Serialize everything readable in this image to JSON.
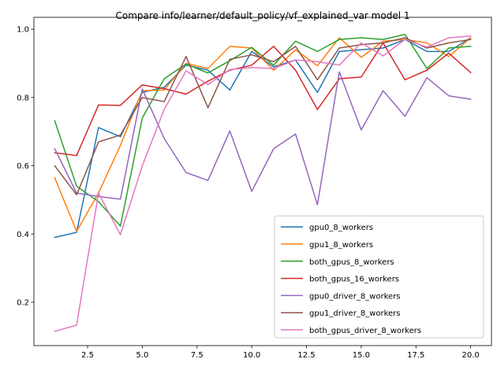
{
  "chart_data": {
    "type": "line",
    "title": "Compare info/learner/default_policy/vf_explained_var model 1",
    "xlabel": "",
    "ylabel": "",
    "xlim": [
      0.05,
      20.95
    ],
    "ylim": [
      0.073,
      1.035
    ],
    "xticks": [
      2.5,
      5.0,
      7.5,
      10.0,
      12.5,
      15.0,
      17.5,
      20.0
    ],
    "xtick_labels": [
      "2.5",
      "5.0",
      "7.5",
      "10.0",
      "12.5",
      "15.0",
      "17.5",
      "20.0"
    ],
    "yticks": [
      0.2,
      0.4,
      0.6,
      0.8,
      1.0
    ],
    "ytick_labels": [
      "0.2",
      "0.4",
      "0.6",
      "0.8",
      "1.0"
    ],
    "grid": false,
    "legend_position": "lower-right",
    "x": [
      1,
      2,
      3,
      4,
      5,
      6,
      7,
      8,
      9,
      10,
      11,
      12,
      13,
      14,
      15,
      16,
      17,
      18,
      19,
      20
    ],
    "series": [
      {
        "name": "gpu0_8_workers",
        "color": "#1f77b4",
        "values": [
          0.39,
          0.405,
          0.712,
          0.685,
          0.815,
          0.83,
          0.895,
          0.88,
          0.822,
          0.935,
          0.89,
          0.91,
          0.815,
          0.935,
          0.94,
          0.945,
          0.97,
          0.935,
          0.935,
          0.975
        ]
      },
      {
        "name": "gpu1_8_workers",
        "color": "#ff7f0e",
        "values": [
          0.565,
          0.408,
          0.52,
          0.66,
          0.82,
          0.822,
          0.9,
          0.885,
          0.95,
          0.945,
          0.88,
          0.94,
          0.893,
          0.975,
          0.918,
          0.965,
          0.97,
          0.96,
          0.92,
          0.975
        ]
      },
      {
        "name": "both_gpus_8_workers",
        "color": "#2ca02c",
        "values": [
          0.732,
          0.54,
          0.495,
          0.423,
          0.74,
          0.855,
          0.898,
          0.872,
          0.908,
          0.947,
          0.895,
          0.965,
          0.935,
          0.97,
          0.975,
          0.97,
          0.985,
          0.885,
          0.945,
          0.95
        ]
      },
      {
        "name": "both_gpus_16_workers",
        "color": "#d62728",
        "values": [
          0.638,
          0.63,
          0.778,
          0.777,
          0.837,
          0.826,
          0.81,
          0.848,
          0.88,
          0.895,
          0.95,
          0.88,
          0.765,
          0.855,
          0.86,
          0.96,
          0.852,
          0.88,
          0.93,
          0.873
        ]
      },
      {
        "name": "gpu0_driver_8_workers",
        "color": "#9467bd",
        "values": [
          0.65,
          0.52,
          0.51,
          0.502,
          0.825,
          0.68,
          0.58,
          0.557,
          0.702,
          0.525,
          0.65,
          0.693,
          0.486,
          0.875,
          0.705,
          0.82,
          0.745,
          0.858,
          0.805,
          0.795
        ]
      },
      {
        "name": "gpu1_driver_8_workers",
        "color": "#8c564b",
        "values": [
          0.6,
          0.515,
          0.67,
          0.69,
          0.8,
          0.788,
          0.92,
          0.77,
          0.912,
          0.925,
          0.905,
          0.95,
          0.852,
          0.945,
          0.955,
          0.96,
          0.975,
          0.945,
          0.96,
          0.97
        ]
      },
      {
        "name": "both_gpus_driver_8_workers",
        "color": "#e377c2",
        "values": [
          0.115,
          0.133,
          0.52,
          0.398,
          0.6,
          0.765,
          0.878,
          0.838,
          0.882,
          0.888,
          0.885,
          0.91,
          0.905,
          0.895,
          0.96,
          0.922,
          0.97,
          0.948,
          0.975,
          0.98
        ]
      }
    ]
  }
}
